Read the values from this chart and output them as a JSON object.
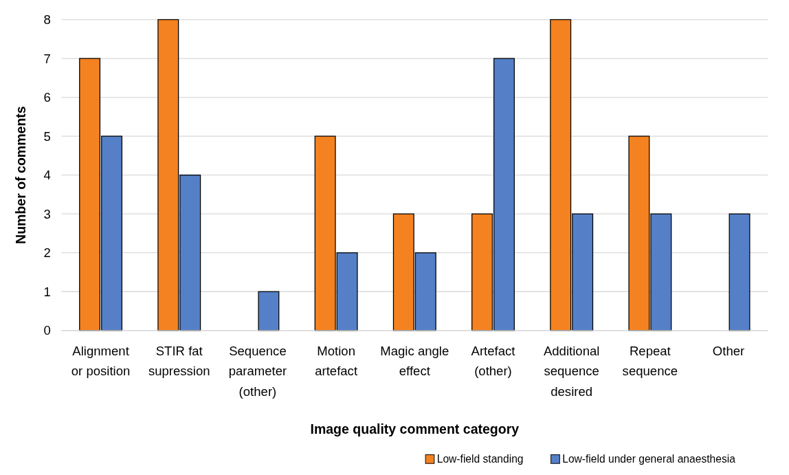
{
  "chart_data": {
    "type": "bar",
    "xlabel": "Image quality comment category",
    "ylabel": "Number of comments",
    "categories": [
      "Alignment or position",
      "STIR fat supression",
      "Sequence parameter (other)",
      "Motion artefact",
      "Magic angle effect",
      "Artefact (other)",
      "Additional sequence desired",
      "Repeat sequence",
      "Other"
    ],
    "series": [
      {
        "name": "Low-field standing",
        "color": "#f58220",
        "values": [
          7,
          8,
          0,
          5,
          3,
          3,
          8,
          5,
          0
        ]
      },
      {
        "name": "Low-field under general anaesthesia",
        "color": "#5580c8",
        "values": [
          5,
          4,
          1,
          2,
          2,
          7,
          3,
          3,
          3
        ]
      }
    ],
    "ylim": [
      0,
      8
    ],
    "yticks": [
      0,
      1,
      2,
      3,
      4,
      5,
      6,
      7,
      8
    ],
    "grid": "y",
    "legend": "bottom right"
  }
}
